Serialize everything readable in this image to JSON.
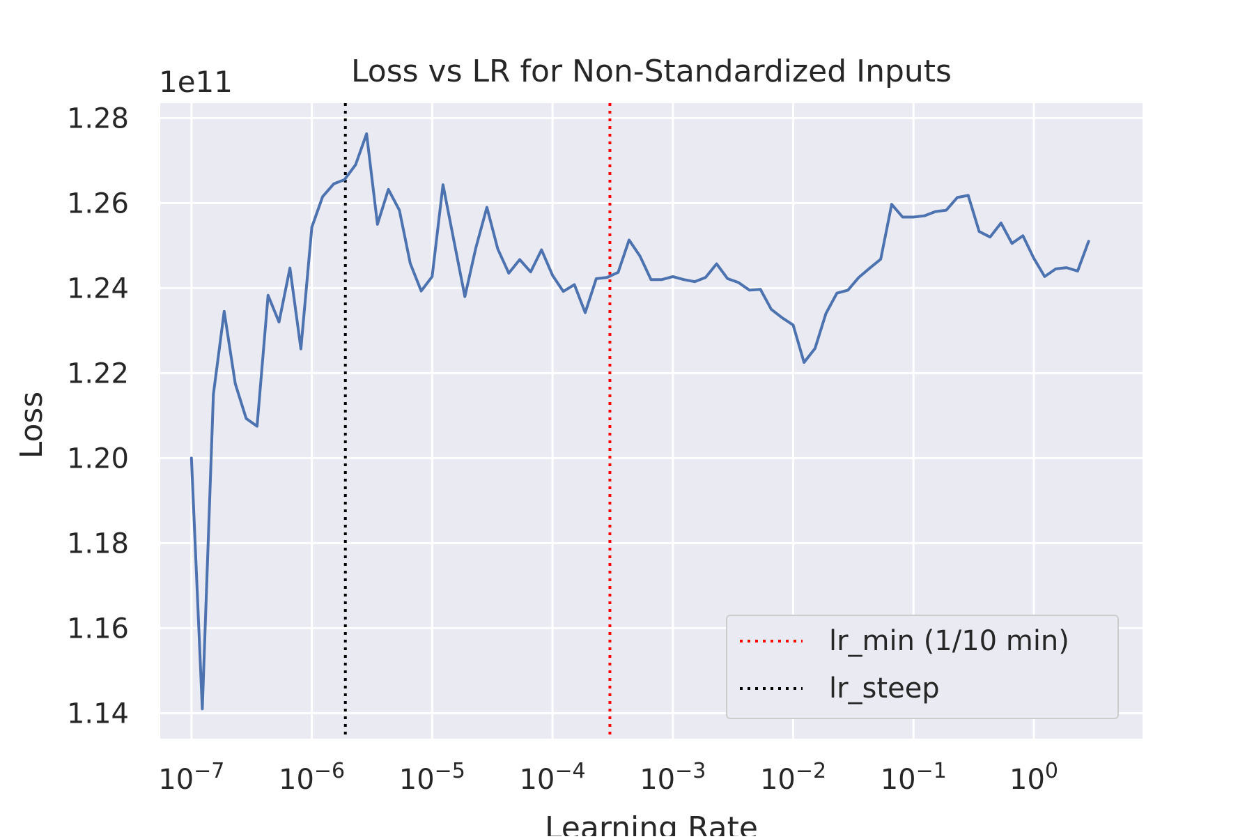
{
  "chart_data": {
    "type": "line",
    "title": "Loss vs LR for Non-Standardized Inputs",
    "xlabel": "Learning Rate",
    "ylabel": "Loss",
    "y_offset_label": "1e11",
    "x_scale": "log",
    "y_scale": "linear",
    "grid": true,
    "xlim": [
      5.5e-08,
      8.0
    ],
    "ylim": [
      113400000000.0,
      128350000000.0
    ],
    "x_ticks": [
      1e-07,
      1e-06,
      1e-05,
      0.0001,
      0.001,
      0.01,
      0.1,
      1
    ],
    "x_tick_labels": [
      {
        "base": "10",
        "exp": "−7"
      },
      {
        "base": "10",
        "exp": "−6"
      },
      {
        "base": "10",
        "exp": "−5"
      },
      {
        "base": "10",
        "exp": "−4"
      },
      {
        "base": "10",
        "exp": "−3"
      },
      {
        "base": "10",
        "exp": "−2"
      },
      {
        "base": "10",
        "exp": "−1"
      },
      {
        "base": "10",
        "exp": "0"
      }
    ],
    "y_ticks": [
      114000000000.0,
      116000000000.0,
      118000000000.0,
      120000000000.0,
      122000000000.0,
      124000000000.0,
      126000000000.0,
      128000000000.0
    ],
    "y_tick_labels": [
      "1.14",
      "1.16",
      "1.18",
      "1.20",
      "1.22",
      "1.24",
      "1.26",
      "1.28"
    ],
    "series": [
      {
        "color": "#4c72b0",
        "x": [
          1e-07,
          1.23e-07,
          1.52e-07,
          1.87e-07,
          2.31e-07,
          2.85e-07,
          3.51e-07,
          4.33e-07,
          5.34e-07,
          6.58e-07,
          8.11e-07,
          1e-06,
          1.23e-06,
          1.52e-06,
          1.87e-06,
          2.31e-06,
          2.85e-06,
          3.51e-06,
          4.33e-06,
          5.34e-06,
          6.58e-06,
          8.11e-06,
          1e-05,
          1.23e-05,
          1.52e-05,
          1.87e-05,
          2.31e-05,
          2.85e-05,
          3.51e-05,
          4.33e-05,
          5.34e-05,
          6.58e-05,
          8.11e-05,
          0.0001,
          0.000123,
          0.000152,
          0.000187,
          0.000231,
          0.000285,
          0.000351,
          0.000433,
          0.000534,
          0.000658,
          0.000811,
          0.001,
          0.00123,
          0.00152,
          0.00187,
          0.00231,
          0.00285,
          0.00351,
          0.00433,
          0.00534,
          0.00658,
          0.00811,
          0.01,
          0.0123,
          0.0152,
          0.0187,
          0.0231,
          0.0285,
          0.0351,
          0.0433,
          0.0534,
          0.0658,
          0.0811,
          0.1,
          0.123,
          0.152,
          0.187,
          0.231,
          0.285,
          0.351,
          0.433,
          0.534,
          0.658,
          0.811,
          1.0,
          1.23,
          1.52,
          1.87,
          2.31,
          2.85
        ],
        "y": [
          120000000000.0,
          114100000000.0,
          121500000000.0,
          123450000000.0,
          121750000000.0,
          120930000000.0,
          120750000000.0,
          123830000000.0,
          123200000000.0,
          124470000000.0,
          122570000000.0,
          125430000000.0,
          126150000000.0,
          126450000000.0,
          126550000000.0,
          126900000000.0,
          127630000000.0,
          125500000000.0,
          126320000000.0,
          125830000000.0,
          124580000000.0,
          123930000000.0,
          124270000000.0,
          126430000000.0,
          125100000000.0,
          123800000000.0,
          124950000000.0,
          125900000000.0,
          124920000000.0,
          124350000000.0,
          124670000000.0,
          124380000000.0,
          124900000000.0,
          124300000000.0,
          123920000000.0,
          124080000000.0,
          123420000000.0,
          124220000000.0,
          124250000000.0,
          124370000000.0,
          125130000000.0,
          124750000000.0,
          124200000000.0,
          124200000000.0,
          124270000000.0,
          124200000000.0,
          124150000000.0,
          124250000000.0,
          124570000000.0,
          124220000000.0,
          124130000000.0,
          123950000000.0,
          123970000000.0,
          123500000000.0,
          123300000000.0,
          123130000000.0,
          122250000000.0,
          122580000000.0,
          123400000000.0,
          123880000000.0,
          123950000000.0,
          124250000000.0,
          124470000000.0,
          124680000000.0,
          125970000000.0,
          125670000000.0,
          125670000000.0,
          125700000000.0,
          125800000000.0,
          125830000000.0,
          126130000000.0,
          126180000000.0,
          125330000000.0,
          125200000000.0,
          125530000000.0,
          125050000000.0,
          125230000000.0,
          124700000000.0,
          124270000000.0,
          124450000000.0,
          124480000000.0,
          124400000000.0,
          125100000000.0
        ]
      }
    ],
    "vlines": [
      {
        "label": "lr_min (1/10 min)",
        "x": 0.0003,
        "color": "#ff0000",
        "style": "dotted"
      },
      {
        "label": "lr_steep",
        "x": 1.9e-06,
        "color": "#000000",
        "style": "dotted"
      }
    ],
    "legend": {
      "position": "lower-right",
      "entries": [
        {
          "label": "lr_min (1/10 min)",
          "color": "#ff0000",
          "style": "dotted"
        },
        {
          "label": "lr_steep",
          "color": "#000000",
          "style": "dotted"
        }
      ]
    }
  }
}
